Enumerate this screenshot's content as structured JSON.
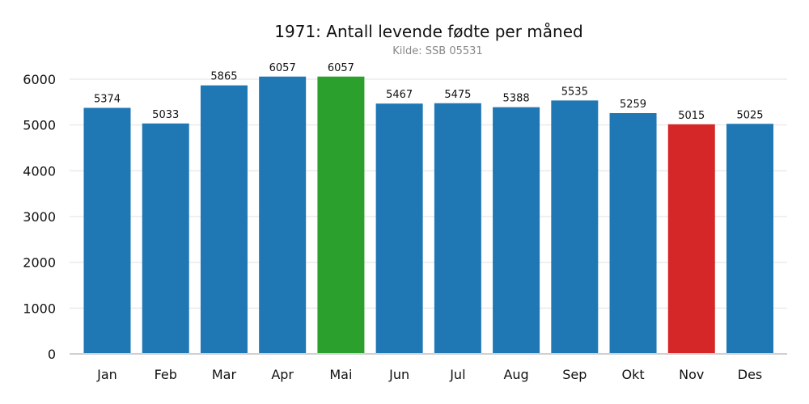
{
  "chart_data": {
    "type": "bar",
    "title": "1971: Antall levende fødte per måned",
    "subtitle": "Kilde: SSB 05531",
    "xlabel": "",
    "ylabel": "",
    "categories": [
      "Jan",
      "Feb",
      "Mar",
      "Apr",
      "Mai",
      "Jun",
      "Jul",
      "Aug",
      "Sep",
      "Okt",
      "Nov",
      "Des"
    ],
    "values": [
      5374,
      5033,
      5865,
      6057,
      6057,
      5467,
      5475,
      5388,
      5535,
      5259,
      5015,
      5025
    ],
    "yticks": [
      0,
      1000,
      2000,
      3000,
      4000,
      5000,
      6000
    ],
    "ylim": [
      0,
      6000
    ],
    "grid": true,
    "colors": {
      "default": "#1f77b4",
      "max": "#2ca02c",
      "min": "#d62728"
    },
    "highlight": {
      "Mai": "max",
      "Nov": "min"
    }
  }
}
